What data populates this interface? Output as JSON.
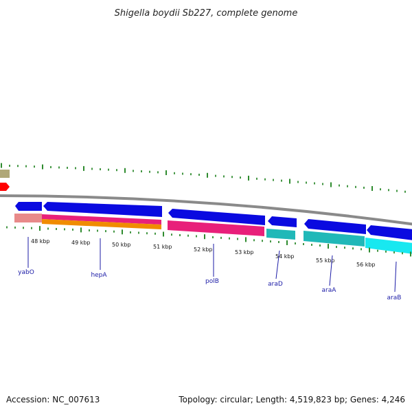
{
  "title": "Shigella boydii Sb227, complete genome",
  "footer": {
    "accession": "Accession: NC_007613",
    "summary": "Topology: circular; Length: 4,519,823 bp; Genes: 4,246"
  },
  "scale_labels": [
    "48 kbp",
    "49 kbp",
    "50 kbp",
    "51 kbp",
    "52 kbp",
    "53 kbp",
    "54 kbp",
    "55 kbp",
    "56 kbp"
  ],
  "genes": [
    {
      "name": "yabO",
      "start_kbp": 47.35,
      "end_kbp": 47.95,
      "label_kbp": 47.65
    },
    {
      "name": "hepA",
      "start_kbp": 47.98,
      "end_kbp": 50.85,
      "label_kbp": 49.65
    },
    {
      "name": "polB",
      "start_kbp": 51.15,
      "end_kbp": 53.45,
      "label_kbp": 52.35
    },
    {
      "name": "araD",
      "start_kbp": 53.55,
      "end_kbp": 54.25,
      "label_kbp": 53.95
    },
    {
      "name": "araA",
      "start_kbp": 54.55,
      "end_kbp": 56.05,
      "label_kbp": 55.35
    },
    {
      "name": "araB",
      "start_kbp": 56.1,
      "end_kbp": 57.8,
      "label_kbp": 56.95
    }
  ],
  "colors": {
    "gene_arrow": "#0a0ae0",
    "backbone": "#8a8a8a",
    "tick": "#2e8b2e",
    "label_line": "#1a1aa6",
    "feature_pink": "#e8207a",
    "feature_orange": "#f08c00",
    "feature_salmon": "#e88a8a",
    "feature_teal": "#20b8b8",
    "feature_cyan": "#18e8f0",
    "feature_khaki": "#b0a878",
    "feature_red": "#ff0000"
  }
}
